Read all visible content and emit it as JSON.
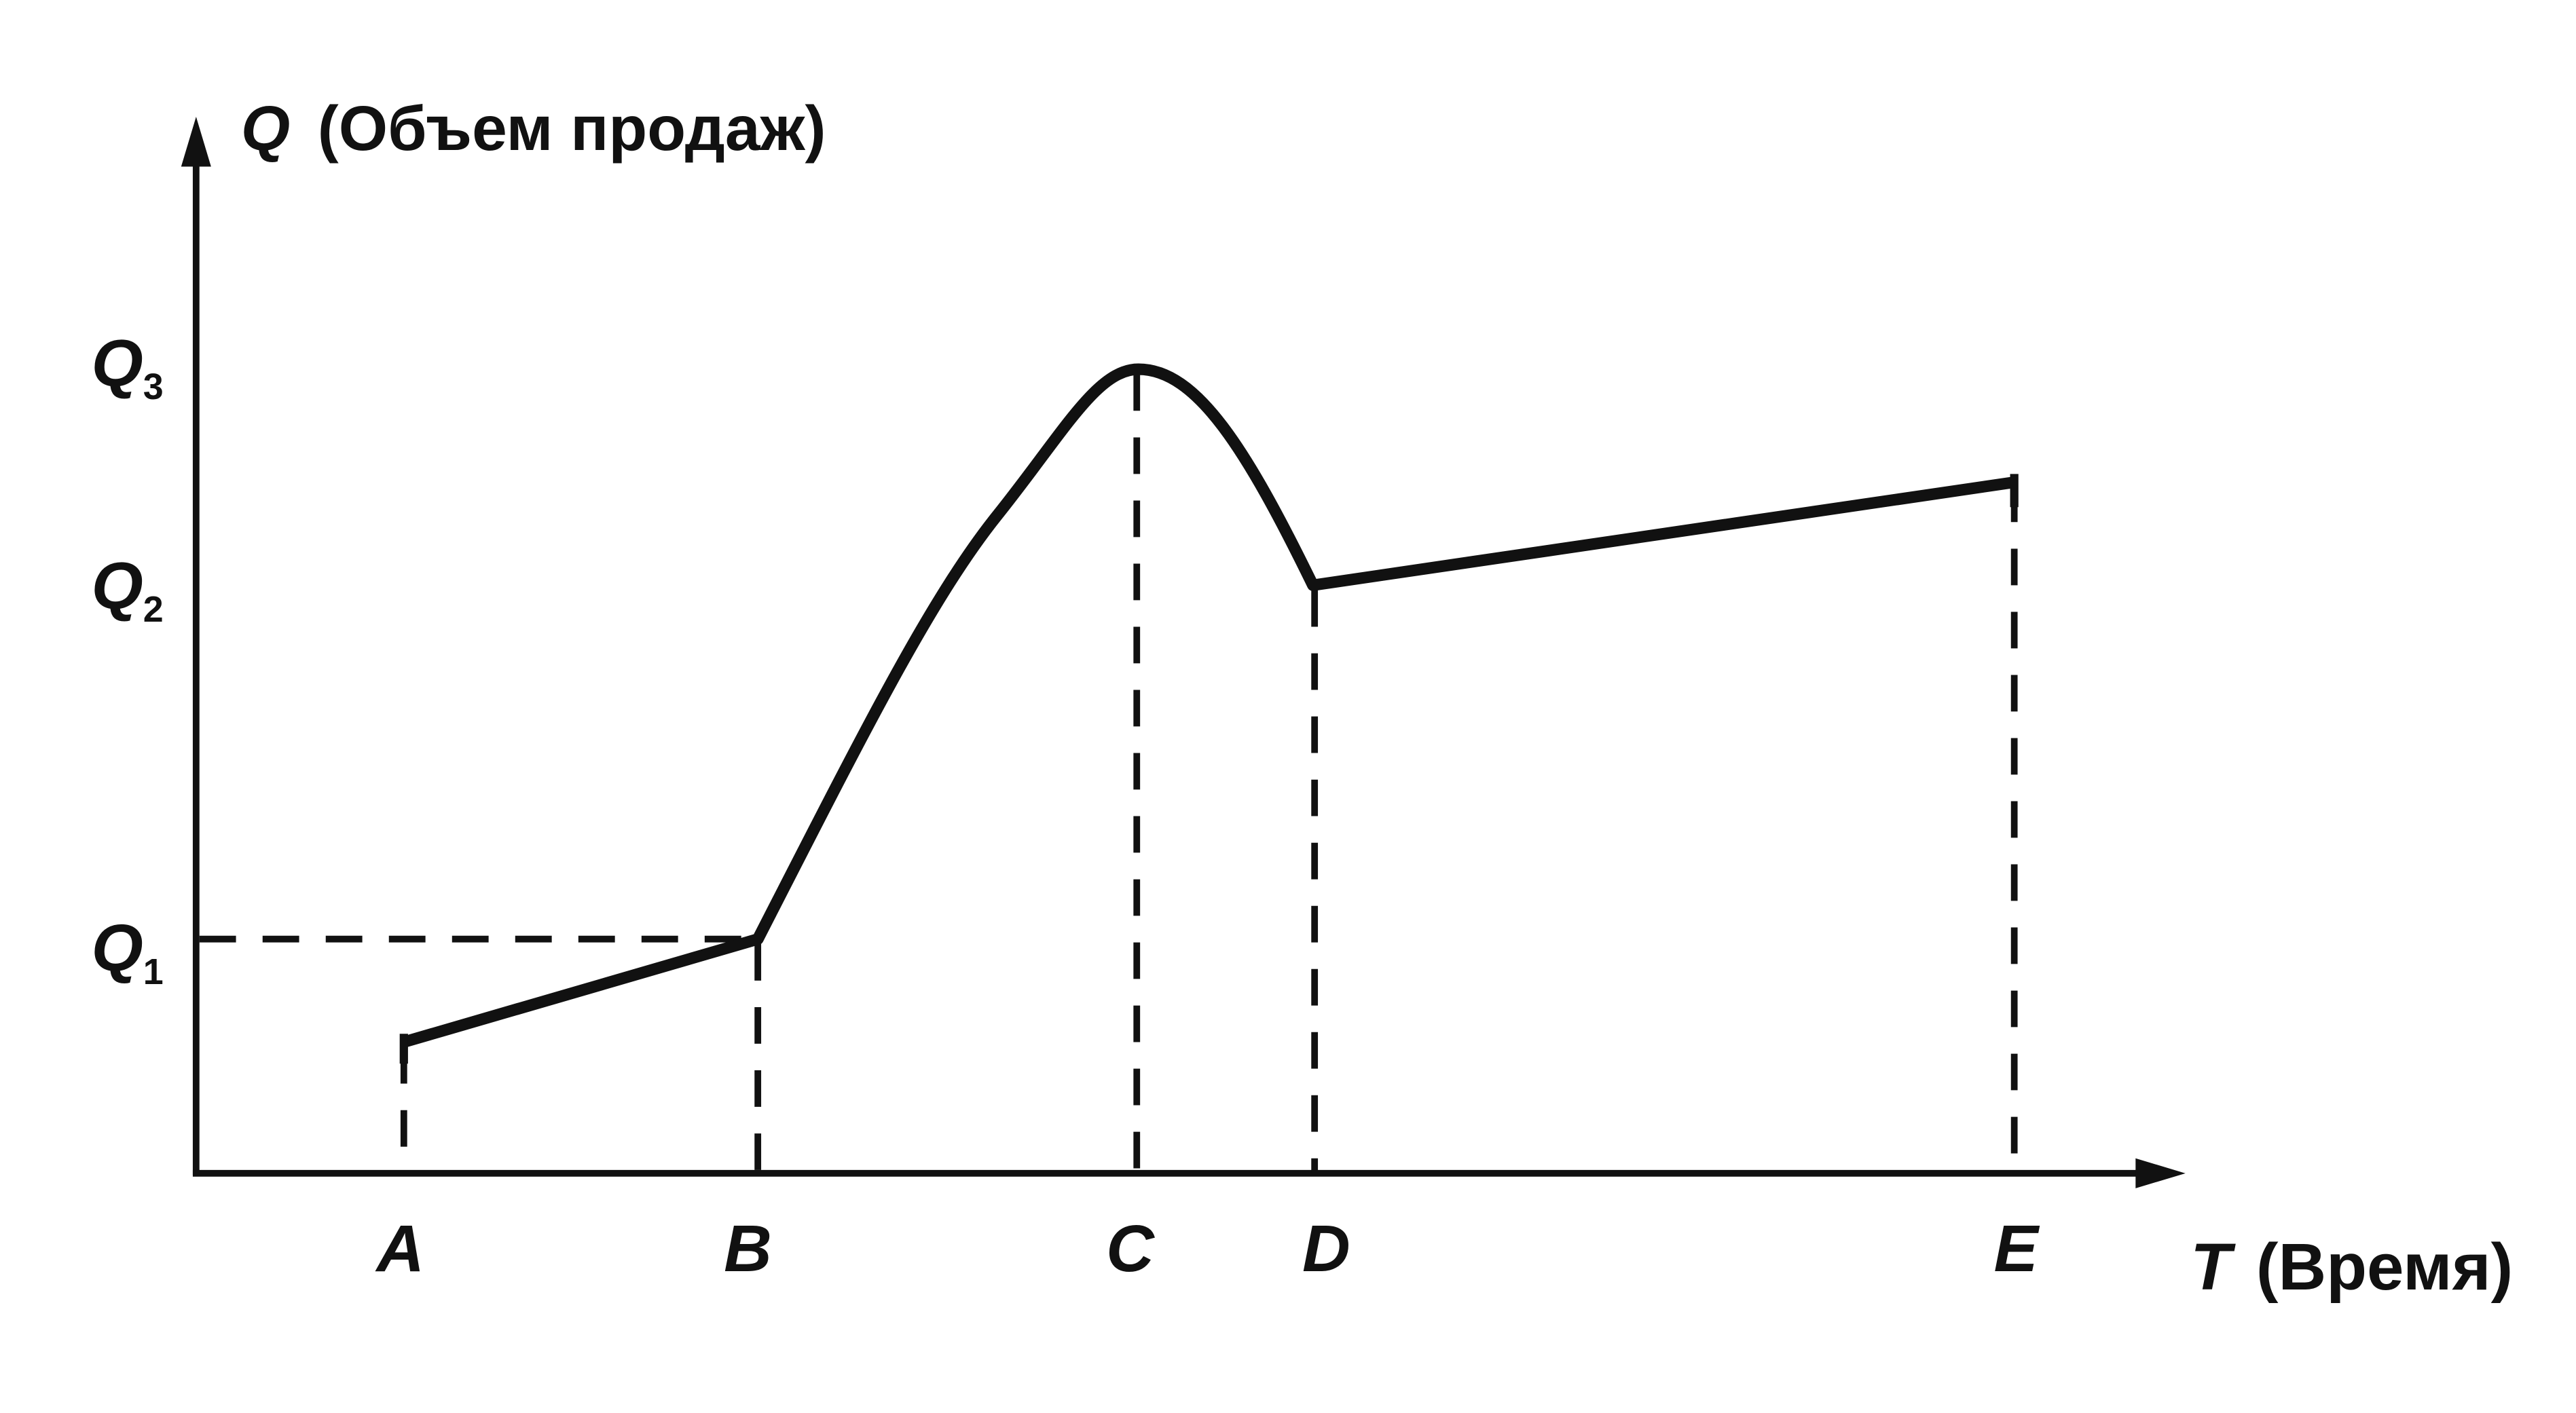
{
  "y_axis_label": {
    "symbol": "Q",
    "text": "(Объем продаж)"
  },
  "x_axis_label": {
    "symbol": "T",
    "text": "(Время)"
  },
  "y_levels": [
    {
      "symbol": "Q",
      "subscript": "3"
    },
    {
      "symbol": "Q",
      "subscript": "2"
    },
    {
      "symbol": "Q",
      "subscript": "1"
    }
  ],
  "x_points": [
    "A",
    "B",
    "C",
    "D",
    "E"
  ]
}
